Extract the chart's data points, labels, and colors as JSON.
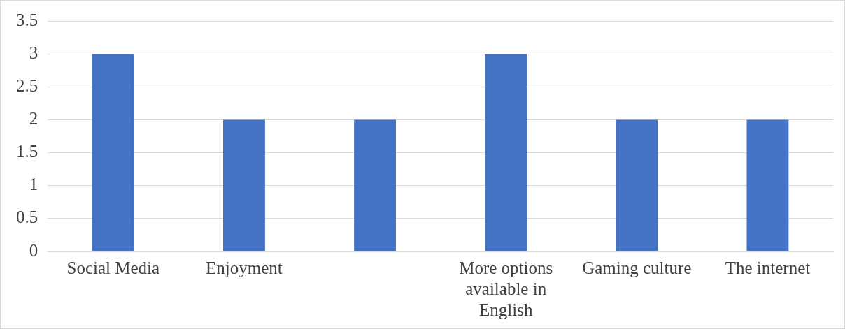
{
  "chart_data": {
    "type": "bar",
    "categories": [
      "Social Media",
      "Enjoyment",
      null,
      "More options available in English",
      "Gaming culture",
      "The internet"
    ],
    "values": [
      3,
      2,
      2,
      3,
      2,
      2
    ],
    "color": "#4472c4",
    "ylim": [
      0,
      3.5
    ],
    "yticks": [
      0,
      0.5,
      1,
      1.5,
      2,
      2.5,
      3,
      3.5
    ],
    "grid": "y",
    "legend": false
  }
}
